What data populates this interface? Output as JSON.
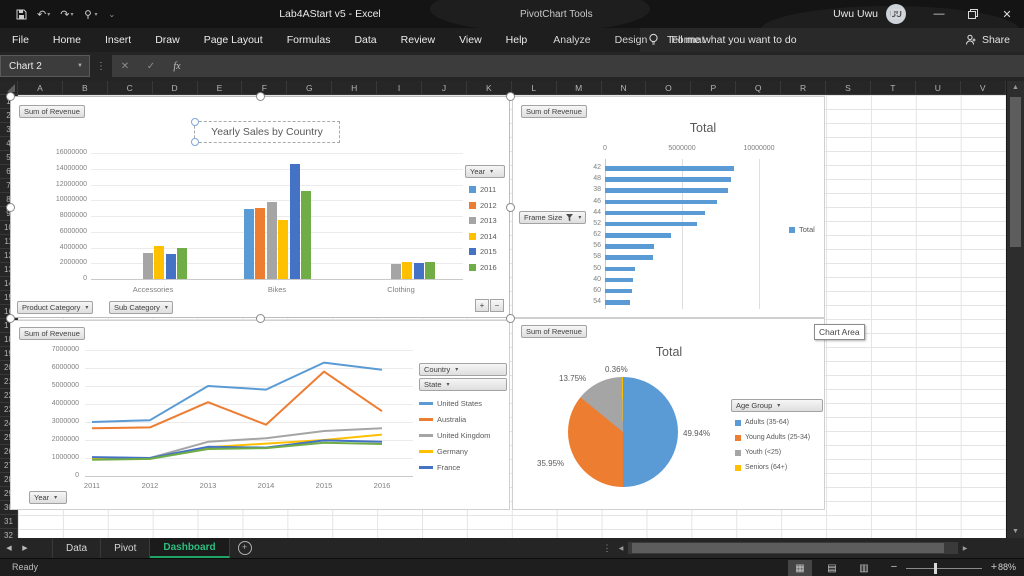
{
  "colors": {
    "accent_green": "#21A366",
    "series_blue": "#5B9BD5",
    "series_orange": "#ED7D31",
    "series_gray": "#A5A5A5",
    "series_yellow": "#FFC000",
    "series_dark_blue": "#4472C4",
    "series_green": "#70AD47"
  },
  "title_bar": {
    "document_title": "Lab4AStart v5  -  Excel",
    "contextual_tools_label": "PivotChart Tools",
    "user_name": "Uwu Uwu",
    "user_initials": "UU"
  },
  "ribbon": {
    "tabs": [
      "File",
      "Home",
      "Insert",
      "Draw",
      "Page Layout",
      "Formulas",
      "Data",
      "Review",
      "View",
      "Help"
    ],
    "contextual_tabs": [
      "Analyze",
      "Design",
      "Format"
    ],
    "tell_me_label": "Tell me what you want to do",
    "share_label": "Share"
  },
  "formula_bar": {
    "name_box_value": "Chart 2",
    "formula_value": ""
  },
  "grid": {
    "column_headers": [
      "A",
      "B",
      "C",
      "D",
      "E",
      "F",
      "G",
      "H",
      "I",
      "J",
      "K",
      "L",
      "M",
      "N",
      "O",
      "P",
      "Q",
      "R",
      "S",
      "T",
      "U",
      "V"
    ],
    "row_headers": [
      "1",
      "2",
      "3",
      "4",
      "5",
      "6",
      "7",
      "8",
      "9",
      "10",
      "11",
      "12",
      "13",
      "14",
      "15",
      "16",
      "17",
      "18",
      "19",
      "20",
      "21",
      "22",
      "23",
      "24",
      "25",
      "26",
      "27",
      "28",
      "29",
      "30",
      "31",
      "32"
    ]
  },
  "sheet_tabs": {
    "tabs": [
      "Data",
      "Pivot",
      "Dashboard"
    ],
    "active_tab": "Dashboard"
  },
  "status_bar": {
    "status": "Ready",
    "zoom_level": "88%"
  },
  "tooltip": "Chart Area",
  "chart_data": [
    {
      "type": "bar",
      "orientation": "vertical",
      "title": "Yearly Sales by Country",
      "field_button": "Sum of Revenue",
      "legend_field_button": "Year",
      "axis_field_buttons": [
        "Product Category",
        "Sub Category"
      ],
      "categories": [
        "Accessories",
        "Bikes",
        "Clothing"
      ],
      "series": [
        {
          "name": "2011",
          "color": "#5B9BD5",
          "values": [
            null,
            8900000,
            null
          ]
        },
        {
          "name": "2012",
          "color": "#ED7D31",
          "values": [
            null,
            9000000,
            null
          ]
        },
        {
          "name": "2013",
          "color": "#A5A5A5",
          "values": [
            3300000,
            9800000,
            1900000
          ]
        },
        {
          "name": "2014",
          "color": "#FFC000",
          "values": [
            4200000,
            7500000,
            2200000
          ]
        },
        {
          "name": "2015",
          "color": "#4472C4",
          "values": [
            3200000,
            14600000,
            2000000
          ]
        },
        {
          "name": "2016",
          "color": "#70AD47",
          "values": [
            3900000,
            11200000,
            2100000
          ]
        }
      ],
      "ylim": [
        0,
        16000000
      ],
      "ytick_step": 2000000,
      "grid": true,
      "legend_position": "right"
    },
    {
      "type": "bar",
      "orientation": "horizontal",
      "title": "Total",
      "field_button": "Sum of Revenue",
      "axis_field_button": "Frame Size",
      "axis_field_button_filtered": true,
      "categories": [
        "42",
        "48",
        "38",
        "46",
        "44",
        "52",
        "62",
        "56",
        "58",
        "50",
        "40",
        "60",
        "54"
      ],
      "values": [
        8400000,
        8200000,
        8000000,
        7300000,
        6500000,
        6000000,
        4300000,
        3200000,
        3100000,
        1950000,
        1850000,
        1750000,
        1600000
      ],
      "color": "#5B9BD5",
      "xlim": [
        0,
        10000000
      ],
      "xticks": [
        0,
        5000000,
        10000000
      ],
      "legend": [
        {
          "label": "Total",
          "color": "#5B9BD5"
        }
      ],
      "legend_position": "right"
    },
    {
      "type": "line",
      "title": "",
      "field_button": "Sum of Revenue",
      "legend_field_buttons": [
        "Country",
        "State"
      ],
      "axis_field_button": "Year",
      "x": [
        "2011",
        "2012",
        "2013",
        "2014",
        "2015",
        "2016"
      ],
      "series": [
        {
          "name": "United States",
          "color": "#5B9BD5",
          "values": [
            3000000,
            3100000,
            5000000,
            4800000,
            6300000,
            5900000
          ]
        },
        {
          "name": "Australia",
          "color": "#ED7D31",
          "values": [
            2650000,
            2700000,
            4100000,
            2850000,
            5800000,
            3600000
          ]
        },
        {
          "name": "United Kingdom",
          "color": "#A5A5A5",
          "values": [
            1000000,
            1000000,
            1900000,
            2100000,
            2500000,
            2650000
          ]
        },
        {
          "name": "Germany",
          "color": "#FFC000",
          "values": [
            1000000,
            950000,
            1600000,
            1800000,
            2000000,
            2300000
          ]
        },
        {
          "name": "France",
          "color": "#4472C4",
          "values": [
            1050000,
            1000000,
            1620000,
            1580000,
            1980000,
            1900000
          ]
        },
        {
          "name": "",
          "color": "#70AD47",
          "values": [
            900000,
            950000,
            1500000,
            1550000,
            1850000,
            1780000
          ]
        }
      ],
      "legend": [
        "United States",
        "Australia",
        "United Kingdom",
        "Germany",
        "France"
      ],
      "ylim": [
        0,
        7000000
      ],
      "ytick_step": 1000000
    },
    {
      "type": "pie",
      "title": "Total",
      "field_button": "Sum of Revenue",
      "legend_field_button": "Age Group",
      "slices": [
        {
          "label": "Adults (35-64)",
          "pct": 49.94,
          "color": "#5B9BD5"
        },
        {
          "label": "Young Adults (25-34)",
          "pct": 35.95,
          "color": "#ED7D31"
        },
        {
          "label": "Youth (<25)",
          "pct": 13.75,
          "color": "#A5A5A5"
        },
        {
          "label": "Seniors (64+)",
          "pct": 0.36,
          "color": "#FFC000"
        }
      ],
      "data_labels": [
        "49.94%",
        "35.95%",
        "13.75%",
        "0.36%"
      ]
    }
  ]
}
